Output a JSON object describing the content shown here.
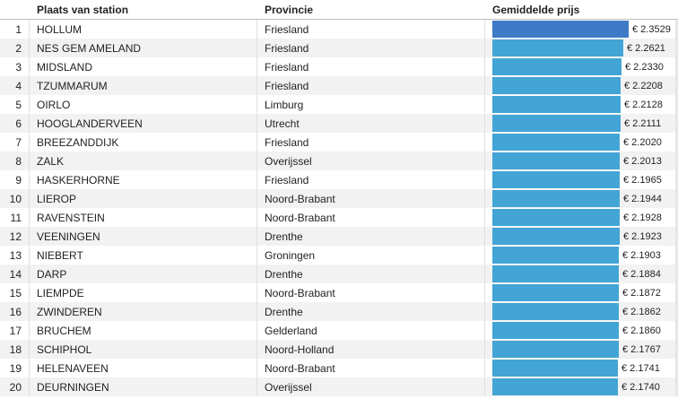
{
  "header": {
    "station_label": "Plaats van station",
    "province_label": "Provincie",
    "price_label": "Gemiddelde prijs"
  },
  "colors": {
    "bar_top": "#3f7ac6",
    "bar": "#42a5d6"
  },
  "chart_data": {
    "type": "table",
    "columns": [
      "Plaats van station",
      "Provincie",
      "Gemiddelde prijs"
    ],
    "value_prefix": "€ ",
    "rows": [
      {
        "rank": "1",
        "station": "HOLLUM",
        "province": "Friesland",
        "price": 2.3529,
        "price_text": "€ 2.3529"
      },
      {
        "rank": "2",
        "station": "NES GEM AMELAND",
        "province": "Friesland",
        "price": 2.2621,
        "price_text": "€ 2.2621"
      },
      {
        "rank": "3",
        "station": "MIDSLAND",
        "province": "Friesland",
        "price": 2.233,
        "price_text": "€ 2.2330"
      },
      {
        "rank": "4",
        "station": "TZUMMARUM",
        "province": "Friesland",
        "price": 2.2208,
        "price_text": "€ 2.2208"
      },
      {
        "rank": "5",
        "station": "OIRLO",
        "province": "Limburg",
        "price": 2.2128,
        "price_text": "€ 2.2128"
      },
      {
        "rank": "6",
        "station": "HOOGLANDERVEEN",
        "province": "Utrecht",
        "price": 2.2111,
        "price_text": "€ 2.2111"
      },
      {
        "rank": "7",
        "station": "BREEZANDDIJK",
        "province": "Friesland",
        "price": 2.202,
        "price_text": "€ 2.2020"
      },
      {
        "rank": "8",
        "station": "ZALK",
        "province": "Overijssel",
        "price": 2.2013,
        "price_text": "€ 2.2013"
      },
      {
        "rank": "9",
        "station": "HASKERHORNE",
        "province": "Friesland",
        "price": 2.1965,
        "price_text": "€ 2.1965"
      },
      {
        "rank": "10",
        "station": "LIEROP",
        "province": "Noord-Brabant",
        "price": 2.1944,
        "price_text": "€ 2.1944"
      },
      {
        "rank": "11",
        "station": "RAVENSTEIN",
        "province": "Noord-Brabant",
        "price": 2.1928,
        "price_text": "€ 2.1928"
      },
      {
        "rank": "12",
        "station": "VEENINGEN",
        "province": "Drenthe",
        "price": 2.1923,
        "price_text": "€ 2.1923"
      },
      {
        "rank": "13",
        "station": "NIEBERT",
        "province": "Groningen",
        "price": 2.1903,
        "price_text": "€ 2.1903"
      },
      {
        "rank": "14",
        "station": "DARP",
        "province": "Drenthe",
        "price": 2.1884,
        "price_text": "€ 2.1884"
      },
      {
        "rank": "15",
        "station": "LIEMPDE",
        "province": "Noord-Brabant",
        "price": 2.1872,
        "price_text": "€ 2.1872"
      },
      {
        "rank": "16",
        "station": "ZWINDEREN",
        "province": "Drenthe",
        "price": 2.1862,
        "price_text": "€ 2.1862"
      },
      {
        "rank": "17",
        "station": "BRUCHEM",
        "province": "Gelderland",
        "price": 2.186,
        "price_text": "€ 2.1860"
      },
      {
        "rank": "18",
        "station": "SCHIPHOL",
        "province": "Noord-Holland",
        "price": 2.1767,
        "price_text": "€ 2.1767"
      },
      {
        "rank": "19",
        "station": "HELENAVEEN",
        "province": "Noord-Brabant",
        "price": 2.1741,
        "price_text": "€ 2.1741"
      },
      {
        "rank": "20",
        "station": "DEURNINGEN",
        "province": "Overijssel",
        "price": 2.174,
        "price_text": "€ 2.1740"
      }
    ]
  }
}
